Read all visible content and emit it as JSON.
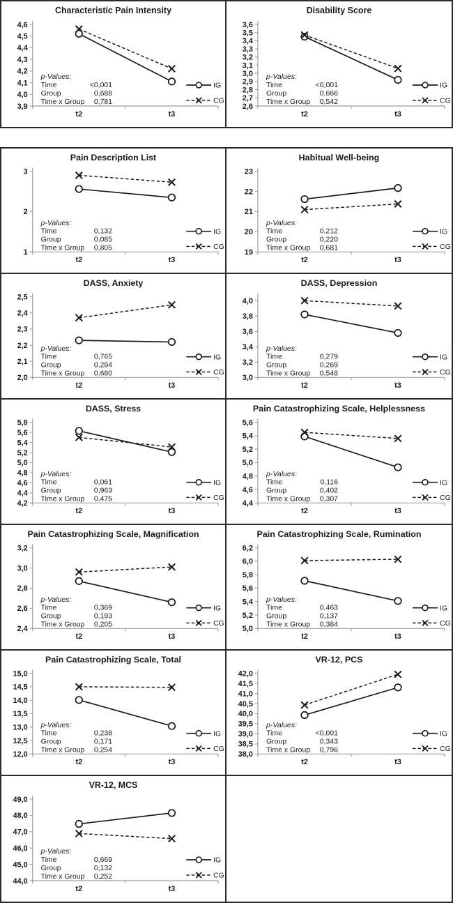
{
  "figure": {
    "x_categories": [
      "t2",
      "t3"
    ],
    "legend": [
      {
        "id": "ig",
        "label": "IG",
        "style": "solid-circle"
      },
      {
        "id": "cg",
        "label": "CG",
        "style": "dashed-x"
      }
    ],
    "p_block": {
      "header": "p-Values:",
      "row_labels": [
        "Time",
        "Group",
        "Time x Group"
      ]
    },
    "colors": {
      "line": "#1a1a1a",
      "axis": "#9e9e9e",
      "text": "#1a1a1a",
      "border": "#2b2b2b",
      "background": "#ffffff"
    }
  },
  "chart_data": [
    {
      "id": "characteristic-pain-intensity",
      "type": "line",
      "title": "Characteristic Pain Intensity",
      "x": [
        "t2",
        "t3"
      ],
      "ylim": [
        3.9,
        4.6
      ],
      "yticks": [
        [
          "4,6",
          4.6
        ],
        [
          "4,5",
          4.5
        ],
        [
          "4,4",
          4.4
        ],
        [
          "4,3",
          4.3
        ],
        [
          "4,2",
          4.2
        ],
        [
          "4,1",
          4.1
        ],
        [
          "4,0",
          4.0
        ],
        [
          "3,9",
          3.9
        ]
      ],
      "series": [
        {
          "name": "IG",
          "values": [
            4.52,
            4.11
          ]
        },
        {
          "name": "CG",
          "values": [
            4.56,
            4.22
          ]
        }
      ],
      "p_values": {
        "Time": "<0,001",
        "Group": "0,688",
        "Time x Group": "0,781"
      }
    },
    {
      "id": "disability-score",
      "type": "line",
      "title": "Disability Score",
      "x": [
        "t2",
        "t3"
      ],
      "ylim": [
        2.6,
        3.6
      ],
      "yticks": [
        [
          "3,6",
          3.6
        ],
        [
          "3,5",
          3.5
        ],
        [
          "3,4",
          3.4
        ],
        [
          "3,3",
          3.3
        ],
        [
          "3,2",
          3.2
        ],
        [
          "3,1",
          3.1
        ],
        [
          "3,0",
          3.0
        ],
        [
          "2,9",
          2.9
        ],
        [
          "2,8",
          2.8
        ],
        [
          "2,7",
          2.7
        ],
        [
          "2,6",
          2.6
        ]
      ],
      "series": [
        {
          "name": "IG",
          "values": [
            3.45,
            2.92
          ]
        },
        {
          "name": "CG",
          "values": [
            3.47,
            3.06
          ]
        }
      ],
      "p_values": {
        "Time": "<0,001",
        "Group": "0,666",
        "Time x Group": "0,542"
      }
    },
    {
      "id": "pain-description-list",
      "type": "line",
      "title": "Pain Description List",
      "x": [
        "t2",
        "t3"
      ],
      "ylim": [
        1,
        3
      ],
      "yticks": [
        [
          "3",
          3
        ],
        [
          "2",
          2
        ],
        [
          "1",
          1
        ]
      ],
      "series": [
        {
          "name": "IG",
          "values": [
            2.56,
            2.35
          ]
        },
        {
          "name": "CG",
          "values": [
            2.9,
            2.73
          ]
        }
      ],
      "p_values": {
        "Time": "0,132",
        "Group": "0,085",
        "Time x Group": "0,805"
      }
    },
    {
      "id": "habitual-well-being",
      "type": "line",
      "title": "Habitual Well-being",
      "x": [
        "t2",
        "t3"
      ],
      "ylim": [
        19,
        23
      ],
      "yticks": [
        [
          "23",
          23
        ],
        [
          "22",
          22
        ],
        [
          "21",
          21
        ],
        [
          "20",
          20
        ],
        [
          "19",
          19
        ]
      ],
      "series": [
        {
          "name": "IG",
          "values": [
            21.62,
            22.17
          ]
        },
        {
          "name": "CG",
          "values": [
            21.1,
            21.38
          ]
        }
      ],
      "p_values": {
        "Time": "0,212",
        "Group": "0,220",
        "Time x Group": "0,681"
      }
    },
    {
      "id": "dass-anxiety",
      "type": "line",
      "title": "DASS, Anxiety",
      "x": [
        "t2",
        "t3"
      ],
      "ylim": [
        2.0,
        2.5
      ],
      "yticks": [
        [
          "2,5",
          2.5
        ],
        [
          "2,4",
          2.4
        ],
        [
          "2,3",
          2.3
        ],
        [
          "2,2",
          2.2
        ],
        [
          "2,1",
          2.1
        ],
        [
          "2,0",
          2.0
        ]
      ],
      "series": [
        {
          "name": "IG",
          "values": [
            2.23,
            2.22
          ]
        },
        {
          "name": "CG",
          "values": [
            2.37,
            2.45
          ]
        }
      ],
      "p_values": {
        "Time": "0,765",
        "Group": "0,294",
        "Time x Group": "0,680"
      }
    },
    {
      "id": "dass-depression",
      "type": "line",
      "title": "DASS, Depression",
      "x": [
        "t2",
        "t3"
      ],
      "ylim": [
        3.0,
        4.05
      ],
      "yticks": [
        [
          "4,0",
          4.0
        ],
        [
          "3,8",
          3.8
        ],
        [
          "3,6",
          3.6
        ],
        [
          "3,4",
          3.4
        ],
        [
          "3,2",
          3.2
        ],
        [
          "3,0",
          3.0
        ]
      ],
      "series": [
        {
          "name": "IG",
          "values": [
            3.82,
            3.58
          ]
        },
        {
          "name": "CG",
          "values": [
            4.0,
            3.93
          ]
        }
      ],
      "p_values": {
        "Time": "0,279",
        "Group": "0,269",
        "Time x Group": "0,548"
      }
    },
    {
      "id": "dass-stress",
      "type": "line",
      "title": "DASS, Stress",
      "x": [
        "t2",
        "t3"
      ],
      "ylim": [
        4.2,
        5.8
      ],
      "yticks": [
        [
          "5,8",
          5.8
        ],
        [
          "5,6",
          5.6
        ],
        [
          "5,4",
          5.4
        ],
        [
          "5,2",
          5.2
        ],
        [
          "5,0",
          5.0
        ],
        [
          "4,8",
          4.8
        ],
        [
          "4,6",
          4.6
        ],
        [
          "4,4",
          4.4
        ],
        [
          "4,2",
          4.2
        ]
      ],
      "series": [
        {
          "name": "IG",
          "values": [
            5.63,
            5.21
          ]
        },
        {
          "name": "CG",
          "values": [
            5.5,
            5.31
          ]
        }
      ],
      "p_values": {
        "Time": "0,061",
        "Group": "0,963",
        "Time x Group": "0,475"
      }
    },
    {
      "id": "pcs-helplessness",
      "type": "line",
      "title": "Pain Catastrophizing Scale, Helplessness",
      "x": [
        "t2",
        "t3"
      ],
      "ylim": [
        4.4,
        5.6
      ],
      "yticks": [
        [
          "5,6",
          5.6
        ],
        [
          "5,4",
          5.4
        ],
        [
          "5,2",
          5.2
        ],
        [
          "5,0",
          5.0
        ],
        [
          "4,8",
          4.8
        ],
        [
          "4,6",
          4.6
        ],
        [
          "4,4",
          4.4
        ]
      ],
      "series": [
        {
          "name": "IG",
          "values": [
            5.39,
            4.93
          ]
        },
        {
          "name": "CG",
          "values": [
            5.45,
            5.36
          ]
        }
      ],
      "p_values": {
        "Time": "0,116",
        "Group": "0,402",
        "Time x Group": "0,307"
      }
    },
    {
      "id": "pcs-magnification",
      "type": "line",
      "title": "Pain Catastrophizing Scale, Magnification",
      "x": [
        "t2",
        "t3"
      ],
      "ylim": [
        2.4,
        3.2
      ],
      "yticks": [
        [
          "3,2",
          3.2
        ],
        [
          "3,0",
          3.0
        ],
        [
          "2,8",
          2.8
        ],
        [
          "2,6",
          2.6
        ],
        [
          "2,4",
          2.4
        ]
      ],
      "series": [
        {
          "name": "IG",
          "values": [
            2.87,
            2.66
          ]
        },
        {
          "name": "CG",
          "values": [
            2.96,
            3.01
          ]
        }
      ],
      "p_values": {
        "Time": "0,369",
        "Group": "0,193",
        "Time x Group": "0,205"
      }
    },
    {
      "id": "pcs-rumination",
      "type": "line",
      "title": "Pain Catastrophizing Scale, Rumination",
      "x": [
        "t2",
        "t3"
      ],
      "ylim": [
        5.0,
        6.2
      ],
      "yticks": [
        [
          "6,2",
          6.2
        ],
        [
          "6,0",
          6.0
        ],
        [
          "5,8",
          5.8
        ],
        [
          "5,6",
          5.6
        ],
        [
          "5,4",
          5.4
        ],
        [
          "5,2",
          5.2
        ],
        [
          "5,0",
          5.0
        ]
      ],
      "series": [
        {
          "name": "IG",
          "values": [
            5.71,
            5.41
          ]
        },
        {
          "name": "CG",
          "values": [
            6.01,
            6.03
          ]
        }
      ],
      "p_values": {
        "Time": "0,463",
        "Group": "0,137",
        "Time x Group": "0,384"
      }
    },
    {
      "id": "pcs-total",
      "type": "line",
      "title": "Pain Catastrophizing Scale, Total",
      "x": [
        "t2",
        "t3"
      ],
      "ylim": [
        12.0,
        15.0
      ],
      "yticks": [
        [
          "15,0",
          15.0
        ],
        [
          "14,5",
          14.5
        ],
        [
          "14,0",
          14.0
        ],
        [
          "13,5",
          13.5
        ],
        [
          "13,0",
          13.0
        ],
        [
          "12,5",
          12.5
        ],
        [
          "12,0",
          12.0
        ]
      ],
      "series": [
        {
          "name": "IG",
          "values": [
            14.01,
            13.04
          ]
        },
        {
          "name": "CG",
          "values": [
            14.5,
            14.48
          ]
        }
      ],
      "p_values": {
        "Time": "0,238",
        "Group": "0,171",
        "Time x Group": "0,254"
      }
    },
    {
      "id": "vr12-pcs",
      "type": "line",
      "title": "VR-12, PCS",
      "x": [
        "t2",
        "t3"
      ],
      "ylim": [
        38.0,
        42.0
      ],
      "yticks": [
        [
          "42,0",
          42.0
        ],
        [
          "41,5",
          41.5
        ],
        [
          "41,0",
          41.0
        ],
        [
          "40,5",
          40.5
        ],
        [
          "40,0",
          40.0
        ],
        [
          "39,5",
          39.5
        ],
        [
          "39,0",
          39.0
        ],
        [
          "38,5",
          38.5
        ],
        [
          "38,0",
          38.0
        ]
      ],
      "series": [
        {
          "name": "IG",
          "values": [
            39.93,
            41.3
          ]
        },
        {
          "name": "CG",
          "values": [
            40.43,
            41.95
          ]
        }
      ],
      "p_values": {
        "Time": "<0,001",
        "Group": "0,343",
        "Time x Group": "0,796"
      }
    },
    {
      "id": "vr12-mcs",
      "type": "line",
      "title": "VR-12, MCS",
      "x": [
        "t2",
        "t3"
      ],
      "ylim": [
        44.0,
        49.0
      ],
      "yticks": [
        [
          "49,0",
          49.0
        ],
        [
          "48,0",
          48.0
        ],
        [
          "47,0",
          47.0
        ],
        [
          "46,0",
          46.0
        ],
        [
          "45,0",
          45.0
        ],
        [
          "44,0",
          44.0
        ]
      ],
      "series": [
        {
          "name": "IG",
          "values": [
            47.48,
            48.15
          ]
        },
        {
          "name": "CG",
          "values": [
            46.89,
            46.58
          ]
        }
      ],
      "p_values": {
        "Time": "0,669",
        "Group": "0,132",
        "Time x Group": "0,252"
      }
    }
  ]
}
